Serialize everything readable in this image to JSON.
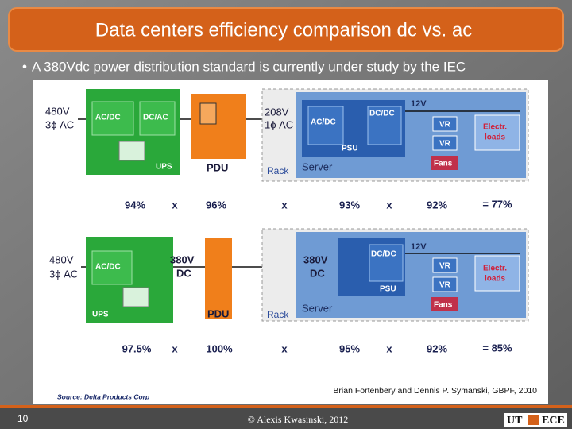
{
  "header": {
    "title": "Data centers efficiency comparison dc vs. ac"
  },
  "bullet": "A 380Vdc power distribution standard is currently under study by the IEC",
  "diagrams": [
    {
      "input": {
        "voltage": "480V",
        "phase": "3ϕ AC"
      },
      "ups": {
        "converters": [
          "AC/DC",
          "DC/AC"
        ],
        "label": "UPS"
      },
      "pdu": "PDU",
      "rack_input": {
        "voltage": "208V",
        "phase": "1ϕ AC"
      },
      "rack": "Rack",
      "server": "Server",
      "psu": {
        "converters": [
          "AC/DC",
          "DC/DC"
        ],
        "label": "PSU"
      },
      "bus": "12V",
      "vr": [
        "VR",
        "VR"
      ],
      "loads": [
        "Electr.",
        "loads"
      ],
      "fans": "Fans",
      "efficiencies": [
        "94%",
        "96%",
        "93%",
        "92%"
      ],
      "operators": [
        "x",
        "x",
        "x"
      ],
      "total": "= 77%"
    },
    {
      "input": {
        "voltage": "480V",
        "phase": "3ϕ AC"
      },
      "ups": {
        "converters": [
          "AC/DC"
        ],
        "label": "UPS"
      },
      "pdu_input": {
        "voltage": "380V",
        "type": "DC"
      },
      "pdu": "PDU",
      "rack_input": {
        "voltage": "380V",
        "type": "DC"
      },
      "rack": "Rack",
      "server": "Server",
      "psu": {
        "converters": [
          "DC/DC"
        ],
        "label": "PSU"
      },
      "bus": "12V",
      "vr": [
        "VR",
        "VR"
      ],
      "loads": [
        "Electr.",
        "loads"
      ],
      "fans": "Fans",
      "efficiencies": [
        "97.5%",
        "100%",
        "95%",
        "92%"
      ],
      "operators": [
        "x",
        "x",
        "x"
      ],
      "total": "= 85%"
    }
  ],
  "credit": "Brian Fortenbery and Dennis P. Symanski, GBPF, 2010",
  "source": "Source: Delta Products Corp",
  "footer": {
    "page": "10",
    "copyright": "© Alexis Kwasinski, 2012",
    "logo": [
      "UT",
      "ECE"
    ]
  }
}
